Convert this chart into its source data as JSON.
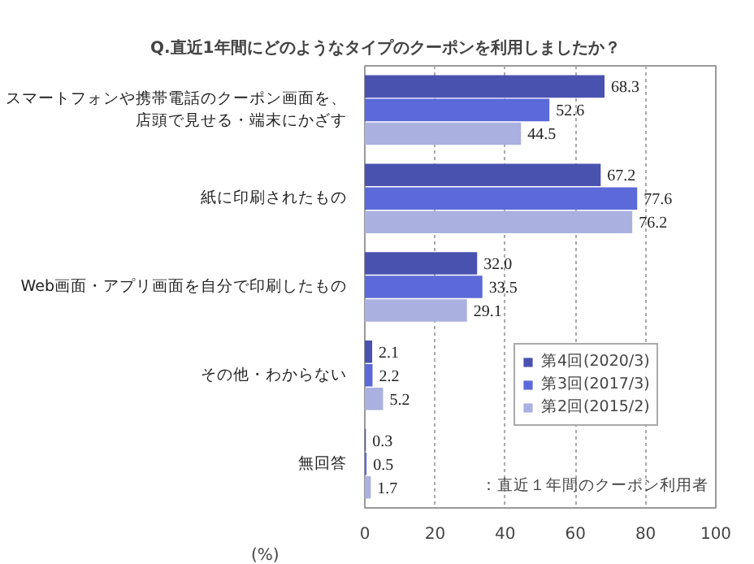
{
  "chart_data": {
    "type": "bar",
    "orientation": "horizontal",
    "title": "Q.直近1年間にどのようなタイプのクーポンを利用しましたか？",
    "xlabel": "(%)",
    "categories": [
      "スマートフォンや携帯電話のクーポン画面を、店頭で見せる・端末にかざす",
      "紙に印刷されたもの",
      "Web画面・アプリ画面を自分で印刷したもの",
      "その他・わからない",
      "無回答"
    ],
    "series": [
      {
        "name": "第4回(2020/3)",
        "color": "#4a52b0",
        "values": [
          68.3,
          67.2,
          32.0,
          2.1,
          0.3
        ],
        "value_labels": [
          "68.3",
          "67.2",
          "32.0",
          "2.1",
          "0.3"
        ]
      },
      {
        "name": "第3回(2017/3)",
        "color": "#5b6ad8",
        "values": [
          52.6,
          77.6,
          33.5,
          2.2,
          0.5
        ],
        "value_labels": [
          "52.6",
          "77.6",
          "33.5",
          "2.2",
          "0.5"
        ]
      },
      {
        "name": "第2回(2015/2)",
        "color": "#aab0e0",
        "values": [
          44.5,
          76.2,
          29.1,
          5.2,
          1.7
        ],
        "value_labels": [
          "44.5",
          "76.2",
          "29.1",
          "5.2",
          "1.7"
        ]
      }
    ],
    "xlim": [
      0,
      100
    ],
    "xticks": [
      0,
      20,
      40,
      60,
      80,
      100
    ],
    "grid": "x",
    "legend": "bottom right",
    "annotations": [
      "：直近１年間のクーポン利用者"
    ]
  }
}
